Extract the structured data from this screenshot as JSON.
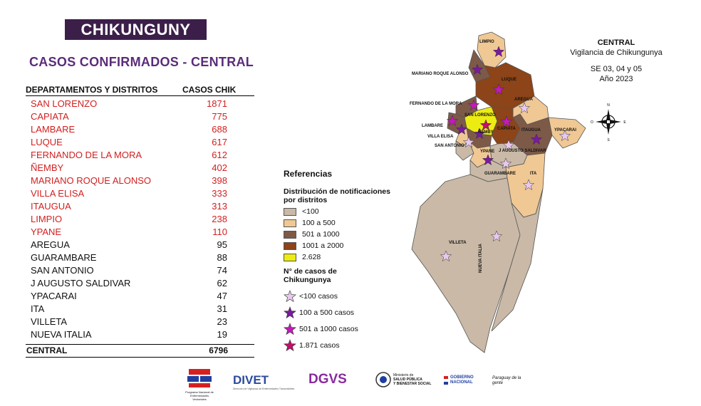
{
  "header": {
    "banner": "CHIKUNGUNY",
    "subtitle": "CASOS CONFIRMADOS - CENTRAL"
  },
  "table": {
    "col_name": "DEPARTAMENTOS Y DISTRITOS",
    "col_value": "CASOS CHIK",
    "rows": [
      {
        "name": "SAN LORENZO",
        "value": "1871"
      },
      {
        "name": "CAPIATA",
        "value": "775"
      },
      {
        "name": "LAMBARE",
        "value": "688"
      },
      {
        "name": "LUQUE",
        "value": "617"
      },
      {
        "name": "FERNANDO DE LA MORA",
        "value": "612"
      },
      {
        "name": "ÑEMBY",
        "value": "402"
      },
      {
        "name": "MARIANO ROQUE ALONSO",
        "value": "398"
      },
      {
        "name": "VILLA ELISA",
        "value": "333"
      },
      {
        "name": "ITAUGUA",
        "value": "313"
      },
      {
        "name": "LIMPIO",
        "value": "238"
      },
      {
        "name": "YPANE",
        "value": "110"
      },
      {
        "name": "AREGUA",
        "value": "95"
      },
      {
        "name": "GUARAMBARE",
        "value": "88"
      },
      {
        "name": "SAN ANTONIO",
        "value": "74"
      },
      {
        "name": "J AUGUSTO SALDIVAR",
        "value": "62"
      },
      {
        "name": "YPACARAI",
        "value": "47"
      },
      {
        "name": "ITA",
        "value": "31"
      },
      {
        "name": "VILLETA",
        "value": "23"
      },
      {
        "name": "NUEVA ITALIA",
        "value": "19"
      }
    ],
    "total_name": "CENTRAL",
    "total_value": "6796",
    "highlight_color": "#d21f1f"
  },
  "legend": {
    "title": "Referencias",
    "dist_title_1": "Distribución de notificaciones",
    "dist_title_2": "por distritos",
    "classes": [
      {
        "label": "<100",
        "color": "#c9b9a6"
      },
      {
        "label": "100 a 500",
        "color": "#f0c894"
      },
      {
        "label": "501 a 1000",
        "color": "#7d5a48"
      },
      {
        "label": "1001 a 2000",
        "color": "#8c4418"
      },
      {
        "label": "2.628",
        "color": "#ecec12"
      }
    ],
    "cases_title_1": "N° de casos de",
    "cases_title_2": "Chikungunya",
    "stars": [
      {
        "label": "<100 casos",
        "color": "#e8c8ec"
      },
      {
        "label": "100 a 500 casos",
        "color": "#7a1aa0"
      },
      {
        "label": "501 a 1000 casos",
        "color": "#c21ab8"
      },
      {
        "label": "1.871 casos",
        "color": "#c0106a"
      }
    ]
  },
  "map": {
    "title_1": "CENTRAL",
    "title_2": "Vigilancia de Chikungunya",
    "period_1": "SE 03, 04 y 05",
    "period_2": "Año 2023",
    "compass": {
      "n": "N",
      "s": "S",
      "e": "E",
      "w": "O"
    },
    "labels": {
      "limpio": "LIMPIO",
      "mra": "MARIANO ROQUE ALONSO",
      "luque": "LUQUE",
      "aregua": "AREGUA",
      "fdm": "FERNANDO DE LA MORA",
      "sanlorenzo": "SAN LORENZO",
      "lambare": "LAMBARE",
      "nemby": "ÑEMBY",
      "capiata": "CAPIATA",
      "itaugua": "ITAUGUA",
      "ypacarai": "YPACARAI",
      "villaelisa": "VILLA ELISA",
      "sanantonio": "SAN ANTONIO",
      "ypane": "YPANE",
      "jas": "J AUGUSTO SALDIVAR",
      "guarambare": "GUARAMBARE",
      "ita": "ITA",
      "villeta": "VILLETA",
      "nuevaitalia": "NUEVA ITALIA"
    }
  },
  "footer": {
    "logo1_caption": "Programa Nacional de Enfermedades Vectoriales",
    "divet": "DIVET",
    "divet_caption": "Dirección de Vigilancia de Enfermedades Transmisibles",
    "dgvs": "DGVS",
    "msp_1": "Ministerio de",
    "msp_2": "SALUD PÚBLICA",
    "msp_3": "Y BIENESTAR SOCIAL",
    "gob_1": "GOBIERNO",
    "gob_2": "NACIONAL",
    "slogan": "Paraguay de la gente"
  }
}
